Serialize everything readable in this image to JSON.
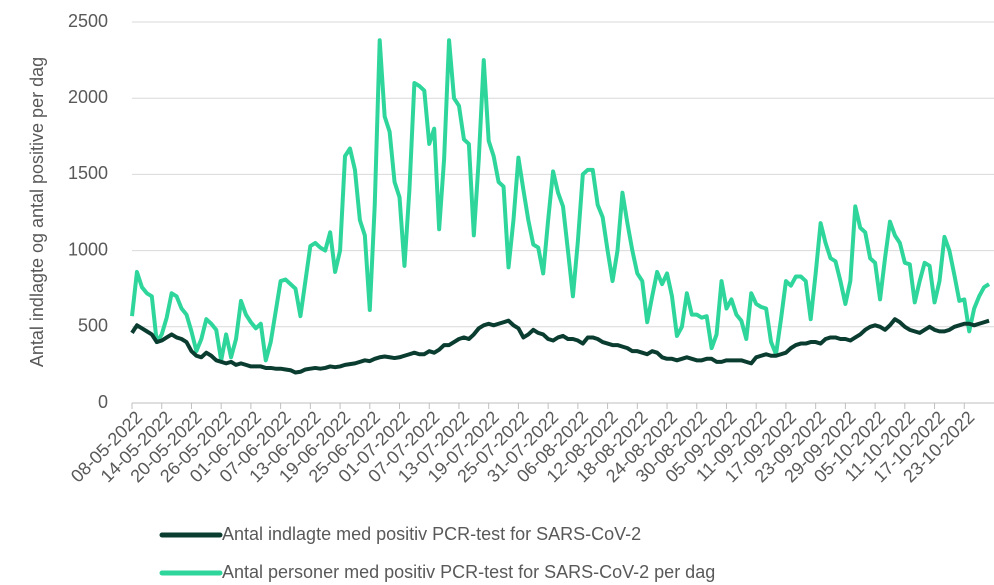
{
  "chart_data": {
    "type": "line",
    "y_label": "Antal indlagte og antal positive per dag",
    "categories": [
      "08-05-2022",
      null,
      null,
      null,
      null,
      null,
      "14-05-2022",
      null,
      null,
      null,
      null,
      null,
      "20-05-2022",
      null,
      null,
      null,
      null,
      null,
      "26-05-2022",
      null,
      null,
      null,
      null,
      null,
      "01-06-2022",
      null,
      null,
      null,
      null,
      null,
      "07-06-2022",
      null,
      null,
      null,
      null,
      null,
      "13-06-2022",
      null,
      null,
      null,
      null,
      null,
      "19-06-2022",
      null,
      null,
      null,
      null,
      null,
      "25-06-2022",
      null,
      null,
      null,
      null,
      null,
      "01-07-2022",
      null,
      null,
      null,
      null,
      null,
      "07-07-2022",
      null,
      null,
      null,
      null,
      null,
      "13-07-2022",
      null,
      null,
      null,
      null,
      null,
      "19-07-2022",
      null,
      null,
      null,
      null,
      null,
      "25-07-2022",
      null,
      null,
      null,
      null,
      null,
      "31-07-2022",
      null,
      null,
      null,
      null,
      null,
      "06-08-2022",
      null,
      null,
      null,
      null,
      null,
      "12-08-2022",
      null,
      null,
      null,
      null,
      null,
      "18-08-2022",
      null,
      null,
      null,
      null,
      null,
      "24-08-2022",
      null,
      null,
      null,
      null,
      null,
      "30-08-2022",
      null,
      null,
      null,
      null,
      null,
      "05-09-2022",
      null,
      null,
      null,
      null,
      null,
      "11-09-2022",
      null,
      null,
      null,
      null,
      null,
      "17-09-2022",
      null,
      null,
      null,
      null,
      null,
      "23-09-2022",
      null,
      null,
      null,
      null,
      null,
      "29-09-2022",
      null,
      null,
      null,
      null,
      null,
      "05-10-2022",
      null,
      null,
      null,
      null,
      null,
      "11-10-2022",
      null,
      null,
      null,
      null,
      null,
      "17-10-2022",
      null,
      null,
      null,
      null,
      null,
      "23-10-2022",
      null,
      null,
      null,
      null,
      null
    ],
    "series": [
      {
        "name": "Antal indlagte med positiv PCR-test for SARS-CoV-2",
        "color": "#0a3d30",
        "values": [
          460,
          510,
          490,
          470,
          450,
          400,
          410,
          430,
          450,
          430,
          420,
          400,
          340,
          310,
          300,
          330,
          310,
          280,
          270,
          260,
          270,
          250,
          260,
          250,
          240,
          240,
          240,
          230,
          230,
          225,
          225,
          220,
          215,
          200,
          205,
          220,
          225,
          230,
          225,
          230,
          240,
          235,
          240,
          250,
          255,
          260,
          270,
          280,
          275,
          290,
          300,
          305,
          300,
          295,
          300,
          310,
          320,
          330,
          320,
          320,
          340,
          330,
          350,
          380,
          380,
          400,
          420,
          430,
          420,
          450,
          490,
          510,
          520,
          510,
          520,
          530,
          540,
          510,
          490,
          430,
          450,
          480,
          460,
          450,
          420,
          410,
          430,
          440,
          420,
          420,
          410,
          390,
          430,
          430,
          420,
          400,
          390,
          380,
          380,
          370,
          360,
          340,
          340,
          330,
          320,
          340,
          330,
          300,
          290,
          290,
          280,
          290,
          300,
          290,
          280,
          280,
          290,
          290,
          270,
          270,
          280,
          280,
          280,
          280,
          270,
          260,
          300,
          310,
          320,
          310,
          310,
          320,
          330,
          360,
          380,
          390,
          390,
          400,
          400,
          390,
          420,
          430,
          430,
          420,
          420,
          410,
          430,
          450,
          480,
          500,
          510,
          500,
          480,
          510,
          550,
          530,
          500,
          480,
          470,
          460,
          480,
          500,
          480,
          470,
          470,
          480,
          500,
          510,
          520,
          520,
          510,
          520,
          530,
          540
        ]
      },
      {
        "name": "Antal personer med positiv PCR-test for SARS-CoV-2 per dag",
        "color": "#2fd69c",
        "values": [
          570,
          860,
          760,
          720,
          700,
          400,
          450,
          560,
          720,
          700,
          620,
          580,
          470,
          340,
          420,
          550,
          520,
          480,
          280,
          450,
          300,
          420,
          670,
          580,
          530,
          490,
          520,
          280,
          400,
          600,
          800,
          810,
          780,
          750,
          570,
          800,
          1030,
          1050,
          1020,
          1000,
          1120,
          860,
          1000,
          1620,
          1670,
          1530,
          1200,
          1100,
          610,
          1300,
          2380,
          1880,
          1780,
          1450,
          1350,
          900,
          1400,
          2100,
          2080,
          2050,
          1700,
          1800,
          1140,
          1600,
          2380,
          2000,
          1950,
          1730,
          1700,
          1100,
          1600,
          2250,
          1720,
          1620,
          1450,
          1420,
          890,
          1200,
          1610,
          1400,
          1200,
          1040,
          1020,
          850,
          1200,
          1520,
          1380,
          1290,
          1000,
          700,
          1060,
          1500,
          1530,
          1530,
          1300,
          1220,
          1000,
          800,
          1000,
          1380,
          1180,
          1000,
          850,
          800,
          530,
          700,
          860,
          780,
          850,
          700,
          440,
          500,
          720,
          580,
          580,
          560,
          570,
          360,
          450,
          800,
          620,
          680,
          580,
          540,
          420,
          720,
          650,
          630,
          620,
          400,
          320,
          550,
          800,
          770,
          830,
          830,
          800,
          550,
          850,
          1180,
          1050,
          950,
          930,
          800,
          650,
          800,
          1290,
          1150,
          1120,
          950,
          920,
          680,
          950,
          1190,
          1100,
          1050,
          920,
          910,
          660,
          800,
          920,
          900,
          660,
          800,
          1090,
          1000,
          840,
          670,
          680,
          470,
          620,
          700,
          760,
          780
        ]
      }
    ],
    "ylim": [
      0,
      2500
    ],
    "yticks": [
      0,
      500,
      1000,
      1500,
      2000,
      2500
    ],
    "grid": true
  }
}
